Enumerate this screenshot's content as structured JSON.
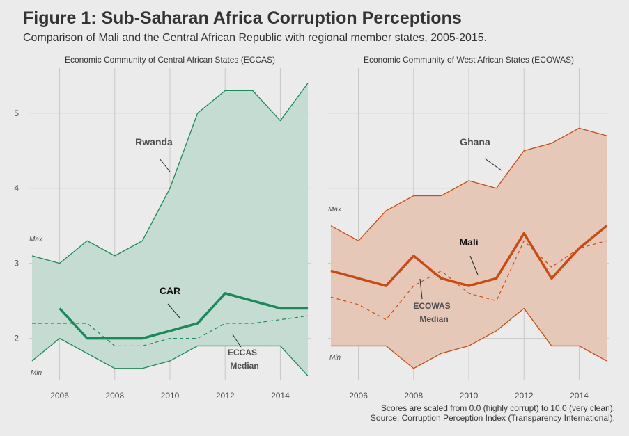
{
  "title": "Figure 1: Sub-Saharan Africa Corruption Perceptions",
  "subtitle": "Comparison of Mali and the Central African Republic with regional member states, 2005-2015.",
  "caption": {
    "line1": "Scores are scaled from 0.0 (highly corrupt) to 10.0 (very clean).",
    "line2": "Source: Corruption Perception Index (Transparency International)."
  },
  "colors": {
    "eccas": "#1b8a5a",
    "eccas_fill": "#c4dcd1",
    "ecowas": "#cc4a10",
    "ecowas_fill": "#e6c8b9",
    "background": "#ebebeb",
    "grid": "#c8c8c8",
    "label": "#4d4d4d"
  },
  "chart_data": [
    {
      "type": "area",
      "panel_title": "Economic Community of Central African States (ECCAS)",
      "color": "eccas",
      "x": [
        2005,
        2006,
        2007,
        2008,
        2009,
        2010,
        2011,
        2012,
        2013,
        2014,
        2015
      ],
      "xticks": [
        2006,
        2008,
        2010,
        2012,
        2014
      ],
      "yticks": [
        2,
        3,
        4,
        5
      ],
      "ylim": [
        1.45,
        5.6
      ],
      "xlim": [
        2004.9,
        2015.1
      ],
      "grid": true,
      "max_label": "Max",
      "min_label": "Min",
      "series": [
        {
          "role": "max",
          "values": [
            3.1,
            3.0,
            3.3,
            3.1,
            3.3,
            4.0,
            5.0,
            5.3,
            5.3,
            4.9,
            5.4
          ]
        },
        {
          "role": "min",
          "values": [
            1.7,
            2.0,
            1.8,
            1.6,
            1.6,
            1.7,
            1.9,
            1.9,
            1.9,
            1.9,
            1.5
          ]
        },
        {
          "role": "median",
          "values": [
            2.2,
            2.2,
            2.2,
            1.9,
            1.9,
            2.0,
            2.0,
            2.2,
            2.2,
            2.25,
            2.3
          ]
        },
        {
          "role": "country",
          "values": [
            null,
            2.4,
            2.0,
            2.0,
            2.0,
            2.1,
            2.2,
            2.6,
            2.5,
            2.4,
            2.4
          ]
        }
      ],
      "annotations": [
        {
          "text": "Rwanda"
        },
        {
          "text": "CAR"
        },
        {
          "text": "ECCAS"
        },
        {
          "text": "Median"
        }
      ]
    },
    {
      "type": "area",
      "panel_title": "Economic Community of West African States (ECOWAS)",
      "color": "ecowas",
      "x": [
        2005,
        2006,
        2007,
        2008,
        2009,
        2010,
        2011,
        2012,
        2013,
        2014,
        2015
      ],
      "xticks": [
        2006,
        2008,
        2010,
        2012,
        2014
      ],
      "yticks": [
        2,
        3,
        4,
        5
      ],
      "ylim": [
        1.45,
        5.6
      ],
      "xlim": [
        2004.9,
        2015.1
      ],
      "grid": true,
      "max_label": "Max",
      "min_label": "Min",
      "series": [
        {
          "role": "max",
          "values": [
            3.5,
            3.3,
            3.7,
            3.9,
            3.9,
            4.1,
            4.0,
            4.5,
            4.6,
            4.8,
            4.7
          ]
        },
        {
          "role": "min",
          "values": [
            1.9,
            1.9,
            1.9,
            1.6,
            1.8,
            1.9,
            2.1,
            2.4,
            1.9,
            1.9,
            1.7
          ]
        },
        {
          "role": "median",
          "values": [
            2.55,
            2.45,
            2.25,
            2.7,
            2.9,
            2.6,
            2.5,
            3.3,
            2.95,
            3.2,
            3.3
          ]
        },
        {
          "role": "country",
          "values": [
            2.9,
            2.8,
            2.7,
            3.1,
            2.8,
            2.7,
            2.8,
            3.4,
            2.8,
            3.2,
            3.5
          ]
        }
      ],
      "annotations": [
        {
          "text": "Ghana"
        },
        {
          "text": "Mali"
        },
        {
          "text": "ECOWAS"
        },
        {
          "text": "Median"
        }
      ]
    }
  ]
}
